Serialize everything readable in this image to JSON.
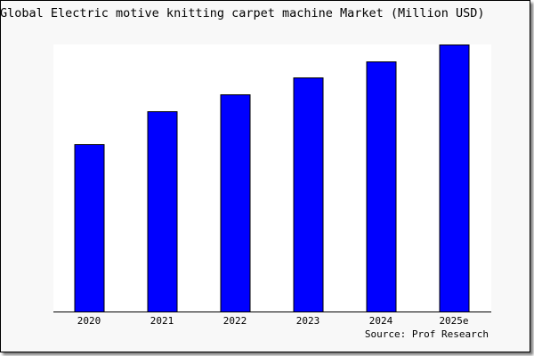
{
  "chart_data": {
    "type": "bar",
    "title": "Global Electric motive knitting carpet machine Market (Million USD)",
    "categories": [
      "2020",
      "2021",
      "2022",
      "2023",
      "2024",
      "2025e"
    ],
    "values": [
      188,
      225,
      244,
      263,
      281,
      300
    ],
    "ylim": [
      0,
      300
    ],
    "xlabel": "",
    "ylabel": "",
    "grid": false,
    "y_axis_shown": false,
    "bar_color": "#0000ff",
    "source": "Source: Prof Research"
  }
}
